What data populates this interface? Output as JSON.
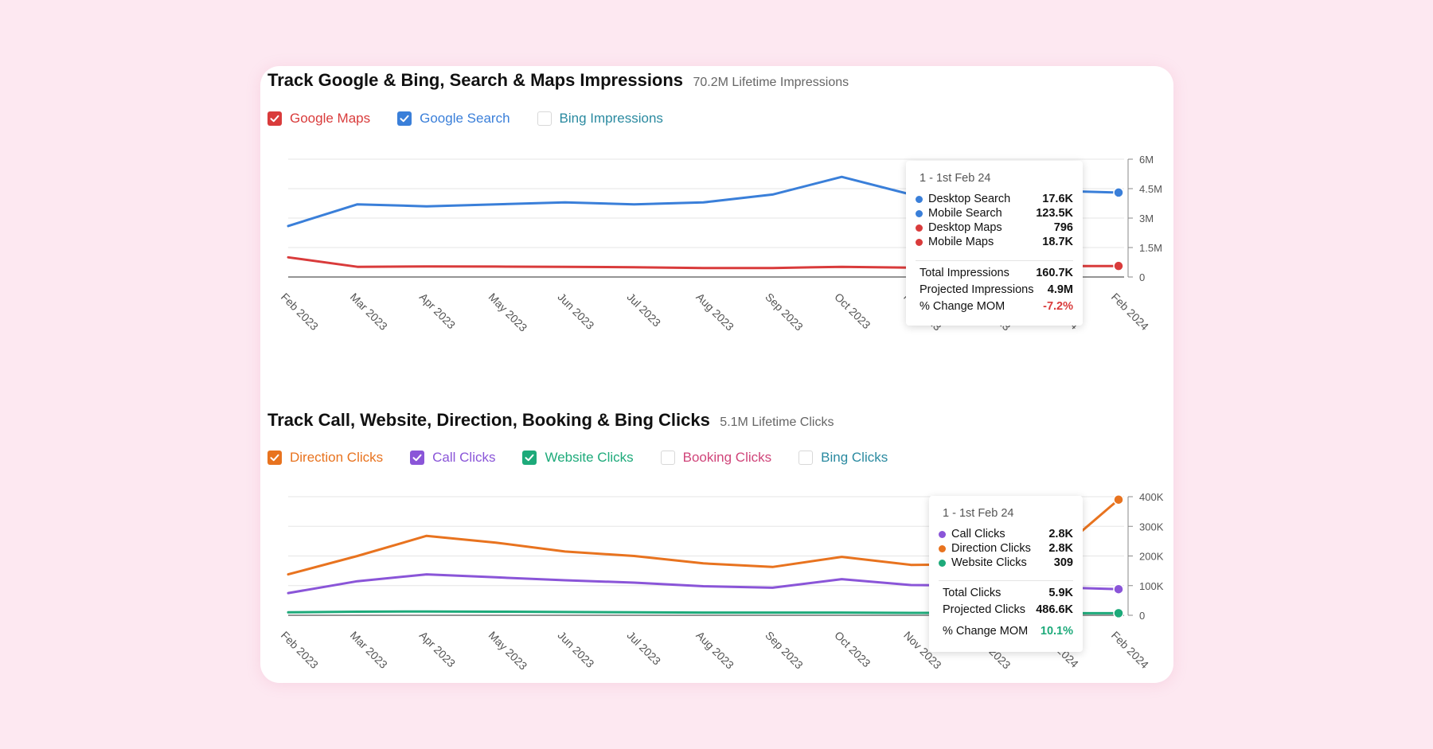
{
  "impressions": {
    "title": "Track Google & Bing, Search & Maps Impressions",
    "subtitle": "70.2M Lifetime Impressions",
    "legend": [
      {
        "label": "Google Maps",
        "checked": true,
        "color": "#d93b3b"
      },
      {
        "label": "Google Search",
        "checked": true,
        "color": "#3a7fd9"
      },
      {
        "label": "Bing Impressions",
        "checked": false,
        "color": "#2a8aa0"
      }
    ],
    "tooltip": {
      "date": "1 - 1st Feb 24",
      "rows": [
        {
          "label": "Desktop Search",
          "value": "17.6K",
          "color": "#3a7fd9"
        },
        {
          "label": "Mobile Search",
          "value": "123.5K",
          "color": "#3a7fd9"
        },
        {
          "label": "Desktop Maps",
          "value": "796",
          "color": "#d93b3b"
        },
        {
          "label": "Mobile Maps",
          "value": "18.7K",
          "color": "#d93b3b"
        }
      ],
      "total_label": "Total Impressions",
      "total_value": "160.7K",
      "projected_label": "Projected Impressions",
      "projected_value": "4.9M",
      "change_label": "% Change MOM",
      "change_value": "-7.2%",
      "change_color": "#d93b3b"
    }
  },
  "clicks": {
    "title": "Track Call, Website, Direction, Booking & Bing Clicks",
    "subtitle": "5.1M Lifetime Clicks",
    "legend": [
      {
        "label": "Direction Clicks",
        "checked": true,
        "color": "#e8731f"
      },
      {
        "label": "Call Clicks",
        "checked": true,
        "color": "#8a55d8"
      },
      {
        "label": "Website Clicks",
        "checked": true,
        "color": "#1daa7a"
      },
      {
        "label": "Booking Clicks",
        "checked": false,
        "color": "#d0457a"
      },
      {
        "label": "Bing Clicks",
        "checked": false,
        "color": "#2a8aa0"
      }
    ],
    "tooltip": {
      "date": "1 - 1st Feb 24",
      "rows": [
        {
          "label": "Call Clicks",
          "value": "2.8K",
          "color": "#8a55d8"
        },
        {
          "label": "Direction Clicks",
          "value": "2.8K",
          "color": "#e8731f"
        },
        {
          "label": "Website Clicks",
          "value": "309",
          "color": "#1daa7a"
        }
      ],
      "total_label": "Total Clicks",
      "total_value": "5.9K",
      "projected_label": "Projected Clicks",
      "projected_value": "486.6K",
      "change_label": "% Change MOM",
      "change_value": "10.1%",
      "change_color": "#1daa7a"
    }
  },
  "chart_data": [
    {
      "type": "line",
      "x": [
        "Feb 2023",
        "Mar 2023",
        "Apr 2023",
        "May 2023",
        "Jun 2023",
        "Jul 2023",
        "Aug 2023",
        "Sep 2023",
        "Oct 2023",
        "Nov 2023",
        "Dec 2023",
        "Jan 2024",
        "Feb 2024"
      ],
      "ylim": [
        0,
        6000000
      ],
      "yticks": [
        "0",
        "1.5M",
        "3M",
        "4.5M",
        "6M"
      ],
      "ytick_values": [
        0,
        1500000,
        3000000,
        4500000,
        6000000
      ],
      "grid": true,
      "series": [
        {
          "name": "Google Search",
          "color": "#3a7fd9",
          "values": [
            2600000,
            3700000,
            3600000,
            3700000,
            3800000,
            3700000,
            3800000,
            4200000,
            5100000,
            4200000,
            4300000,
            4400000,
            4300000
          ]
        },
        {
          "name": "Google Maps",
          "color": "#d93b3b",
          "values": [
            1000000,
            520000,
            540000,
            530000,
            520000,
            500000,
            460000,
            460000,
            520000,
            480000,
            480000,
            560000,
            560000
          ]
        }
      ]
    },
    {
      "type": "line",
      "x": [
        "Feb 2023",
        "Mar 2023",
        "Apr 2023",
        "May 2023",
        "Jun 2023",
        "Jul 2023",
        "Aug 2023",
        "Sep 2023",
        "Oct 2023",
        "Nov 2023",
        "Dec 2023",
        "Jan 2024",
        "Feb 2024"
      ],
      "ylim": [
        0,
        400000
      ],
      "yticks": [
        "0",
        "100K",
        "200K",
        "300K",
        "400K"
      ],
      "ytick_values": [
        0,
        100000,
        200000,
        300000,
        400000
      ],
      "grid": true,
      "series": [
        {
          "name": "Direction Clicks",
          "color": "#e8731f",
          "values": [
            138000,
            200000,
            268000,
            245000,
            215000,
            200000,
            175000,
            163000,
            197000,
            170000,
            172000,
            190000,
            390000
          ]
        },
        {
          "name": "Call Clicks",
          "color": "#8a55d8",
          "values": [
            75000,
            115000,
            138000,
            128000,
            118000,
            110000,
            98000,
            93000,
            122000,
            102000,
            100000,
            95000,
            88000
          ]
        },
        {
          "name": "Website Clicks",
          "color": "#1daa7a",
          "values": [
            10000,
            12000,
            13000,
            12000,
            11000,
            10000,
            9000,
            9000,
            9000,
            8000,
            8000,
            7000,
            7000
          ]
        }
      ]
    }
  ]
}
